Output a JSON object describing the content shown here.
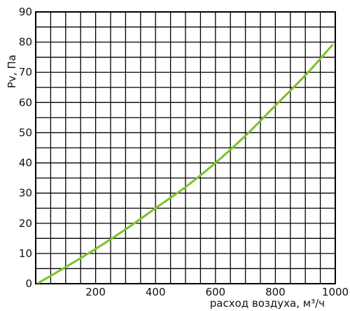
{
  "chart_data": {
    "type": "line",
    "title": "",
    "xlabel": "расход воздуха, м³/ч",
    "ylabel": "Pv, Па",
    "xlim": [
      0,
      1000
    ],
    "ylim": [
      0,
      90
    ],
    "grid": true,
    "x_major_ticks": [
      200,
      400,
      600,
      800,
      1000
    ],
    "x_grid_step": 50,
    "y_ticks": [
      0,
      10,
      20,
      30,
      40,
      50,
      60,
      70,
      80,
      90
    ],
    "y_grid_step": 5,
    "line_color": "#7dc12b",
    "series": [
      {
        "x": [
          10,
          100,
          200,
          300,
          400,
          500,
          600,
          700,
          800,
          900,
          990
        ],
        "values": [
          0.3,
          5.5,
          11.5,
          18,
          25,
          32,
          40,
          49,
          59,
          69,
          79
        ]
      }
    ]
  }
}
